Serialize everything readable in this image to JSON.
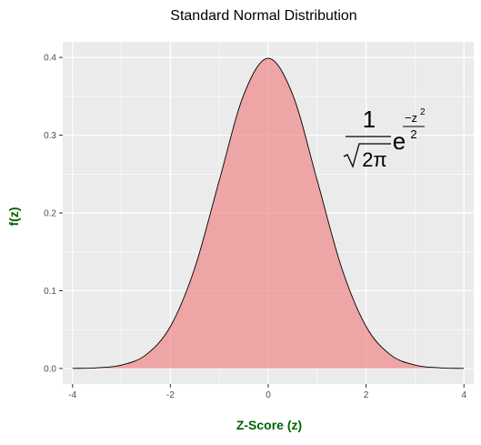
{
  "colors": {
    "panel_bg": "#ebebeb",
    "grid_major": "#ffffff",
    "curve_stroke": "#000000",
    "fill": "#f08080",
    "axis_title": "#006400",
    "tick_text": "#4d4d4d"
  },
  "formula": {
    "numerator": "1",
    "sqrt_arg": "2π",
    "base": "e",
    "exp_numerator": "−z",
    "exp_power": "2",
    "exp_denominator": "2"
  },
  "chart_data": {
    "type": "area",
    "title": "Standard Normal Distribution",
    "xlabel": "Z-Score (z)",
    "ylabel": "f(z)",
    "xlim": [
      -4.2,
      4.2
    ],
    "ylim": [
      -0.02,
      0.42
    ],
    "x_ticks": [
      -4,
      -2,
      0,
      2,
      4
    ],
    "x_tick_labels": [
      "-4",
      "-2",
      "0",
      "2",
      "4"
    ],
    "y_ticks": [
      0.0,
      0.1,
      0.2,
      0.3,
      0.4
    ],
    "y_tick_labels": [
      "0.0",
      "0.1",
      "0.2",
      "0.3",
      "0.4"
    ],
    "grid": true,
    "series": [
      {
        "x": [
          -4,
          -3.5,
          -3,
          -2.5,
          -2,
          -1.5,
          -1,
          -0.5,
          0,
          0.5,
          1,
          1.5,
          2,
          2.5,
          3,
          3.5,
          4
        ],
        "values": [
          0.0001,
          0.0009,
          0.0044,
          0.0175,
          0.054,
          0.1295,
          0.242,
          0.3521,
          0.3989,
          0.3521,
          0.242,
          0.1295,
          0.054,
          0.0175,
          0.0044,
          0.0009,
          0.0001
        ]
      }
    ]
  }
}
